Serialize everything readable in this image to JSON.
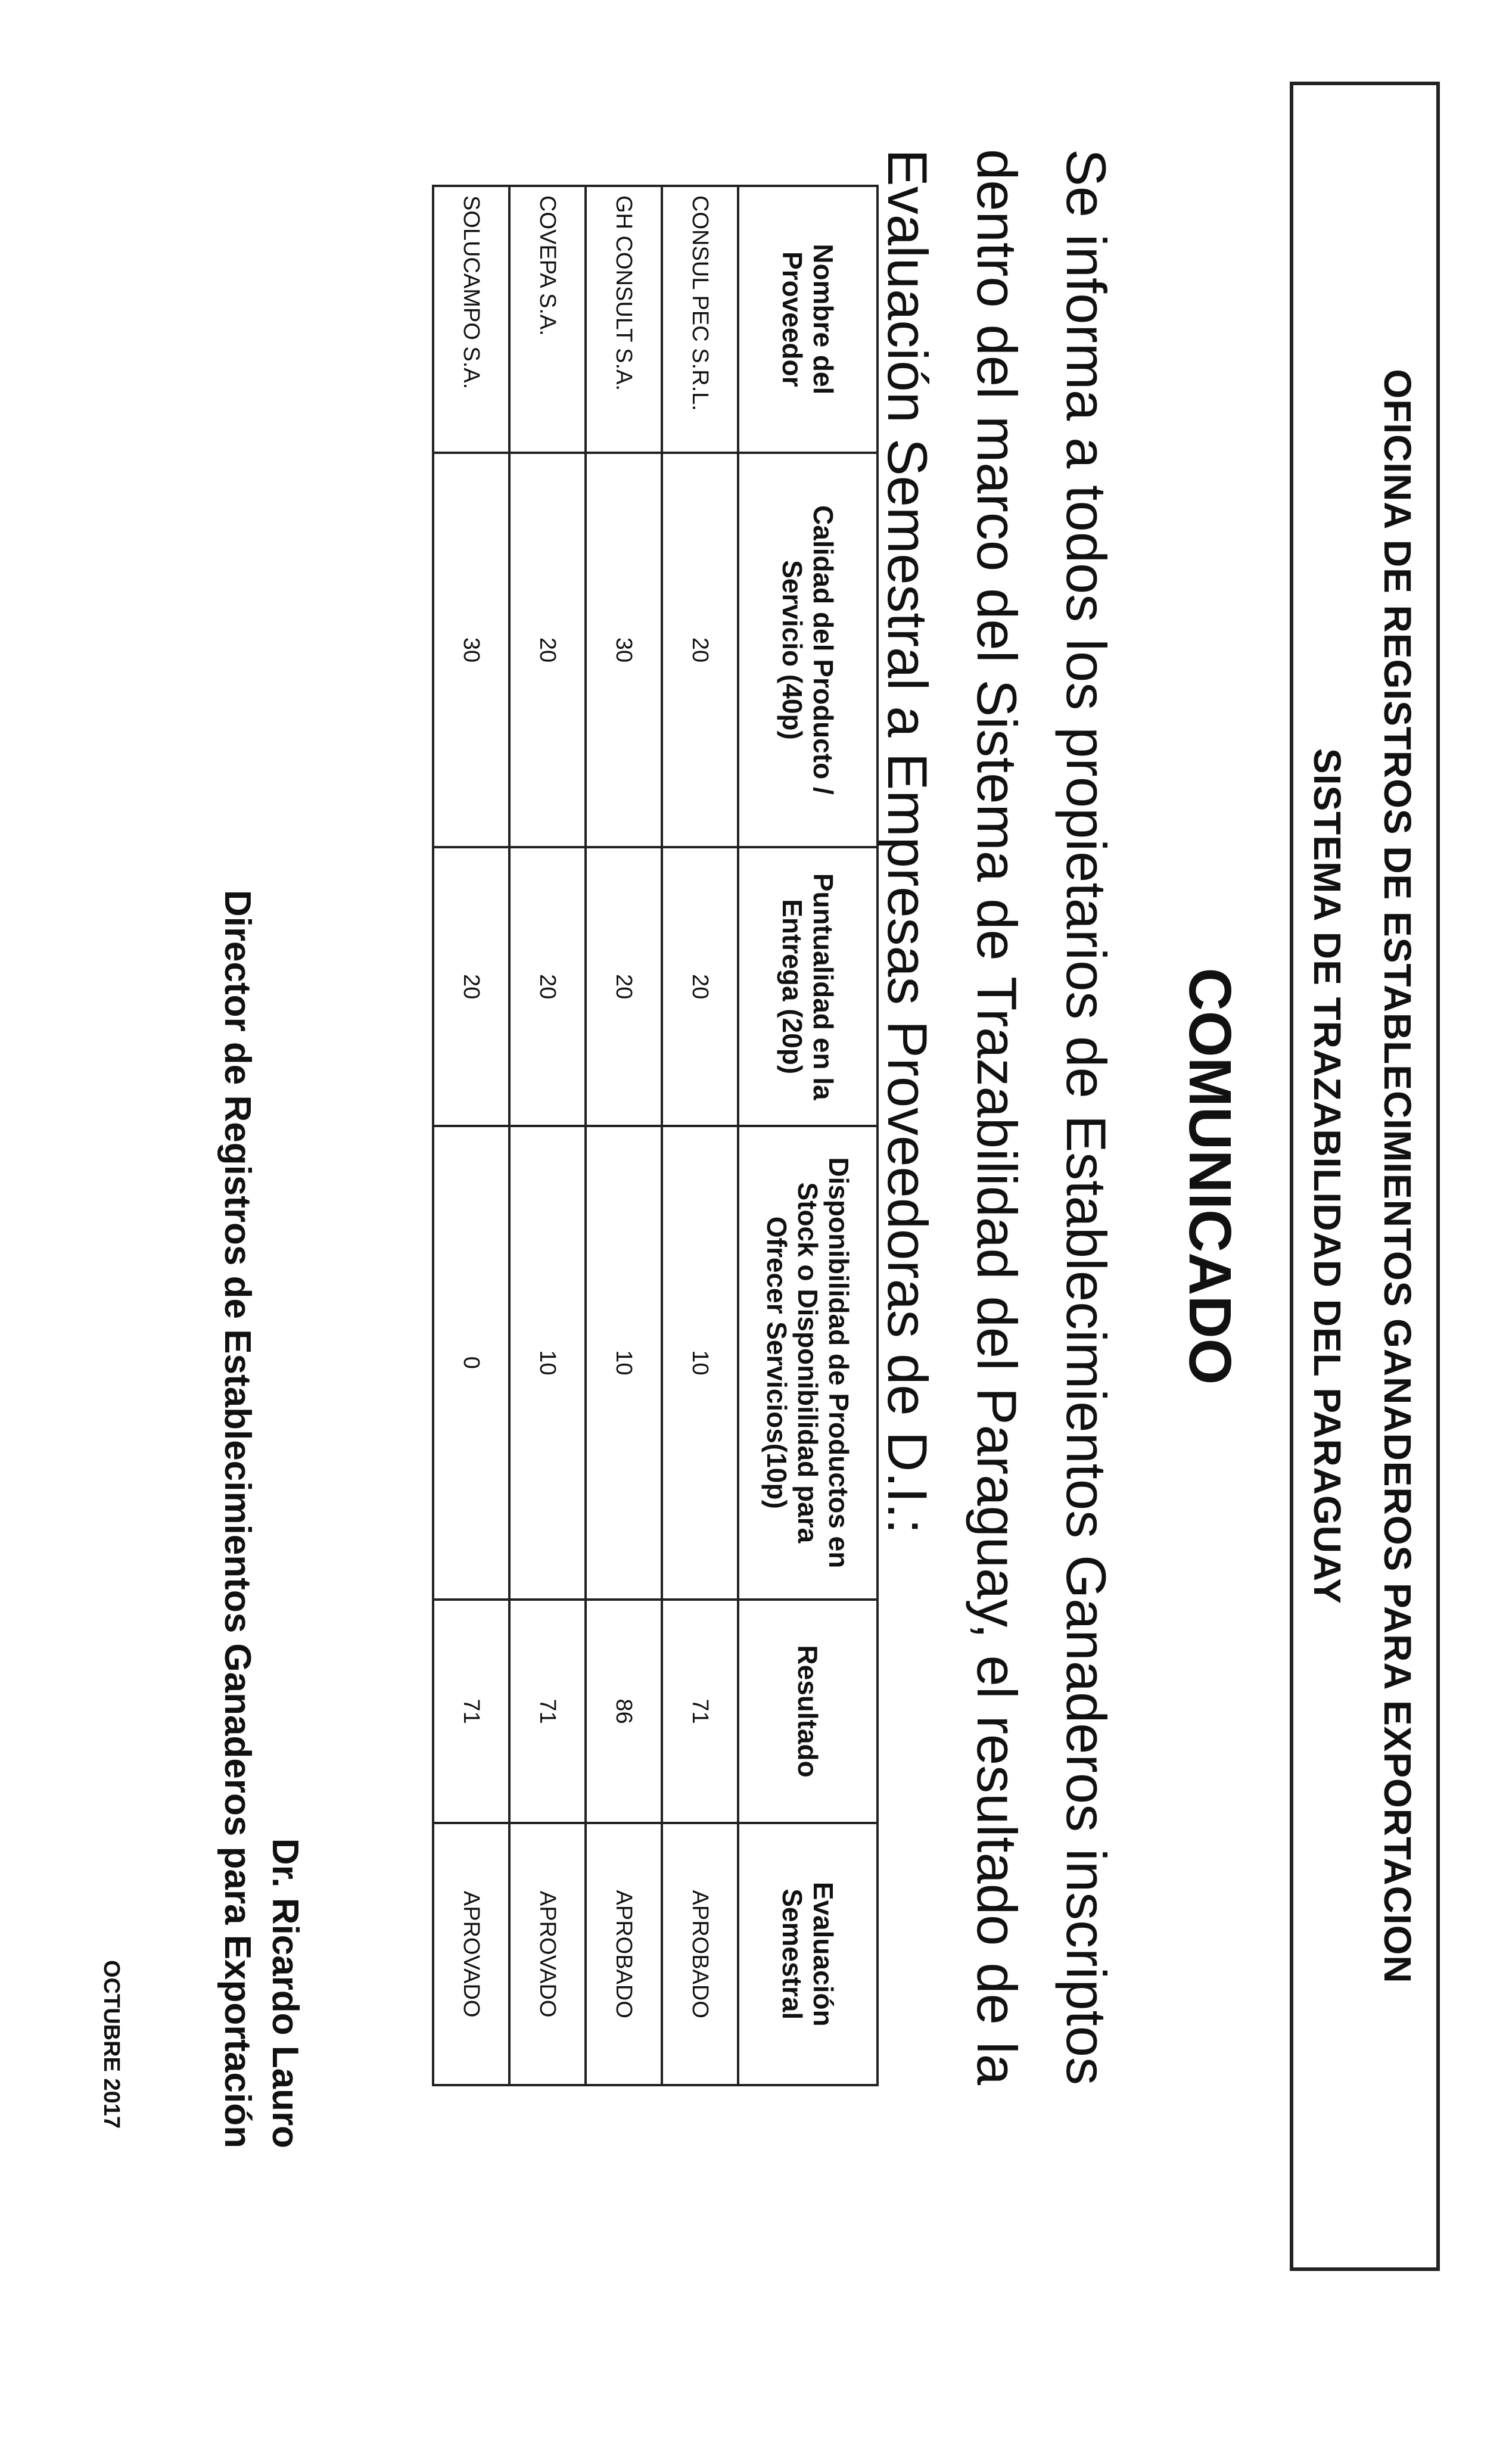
{
  "header": {
    "line1": "OFICINA DE REGISTROS DE ESTABLECIMIENTOS GANADEROS PARA EXPORTACION",
    "line2": "SISTEMA DE TRAZABILIDAD DEL PARAGUAY"
  },
  "title": "COMUNICADO",
  "body": "Se informa a todos los propietarios de Establecimientos Ganaderos inscriptos dentro del marco del Sistema de Trazabilidad del Paraguay, el resultado de la Evaluación Semestral a Empresas Proveedoras de D.I.:",
  "table": {
    "headers": [
      "Nombre del Proveedor",
      "Calidad del Producto / Servicio (40p)",
      "Puntualidad en la Entrega (20p)",
      "Disponibilidad de Productos en Stock o Disponibilidad para Ofrecer Servicios(10p)",
      "Resultado",
      "Evaluación Semestral"
    ],
    "rows": [
      [
        "CONSUL PEC S.R.L.",
        "20",
        "20",
        "10",
        "71",
        "APROBADO"
      ],
      [
        "GH CONSULT S.A.",
        "30",
        "20",
        "10",
        "86",
        "APROBADO"
      ],
      [
        "COVEPA S.A.",
        "20",
        "20",
        "10",
        "71",
        "APROVADO"
      ],
      [
        "SOLUCAMPO S.A.",
        "30",
        "20",
        "0",
        "71",
        "APROVADO"
      ]
    ]
  },
  "signature": {
    "name": "Dr. Ricardo Lauro",
    "role": "Director de Registros de Establecimientos Ganaderos para Exportación"
  },
  "date": "OCTUBRE 2017"
}
